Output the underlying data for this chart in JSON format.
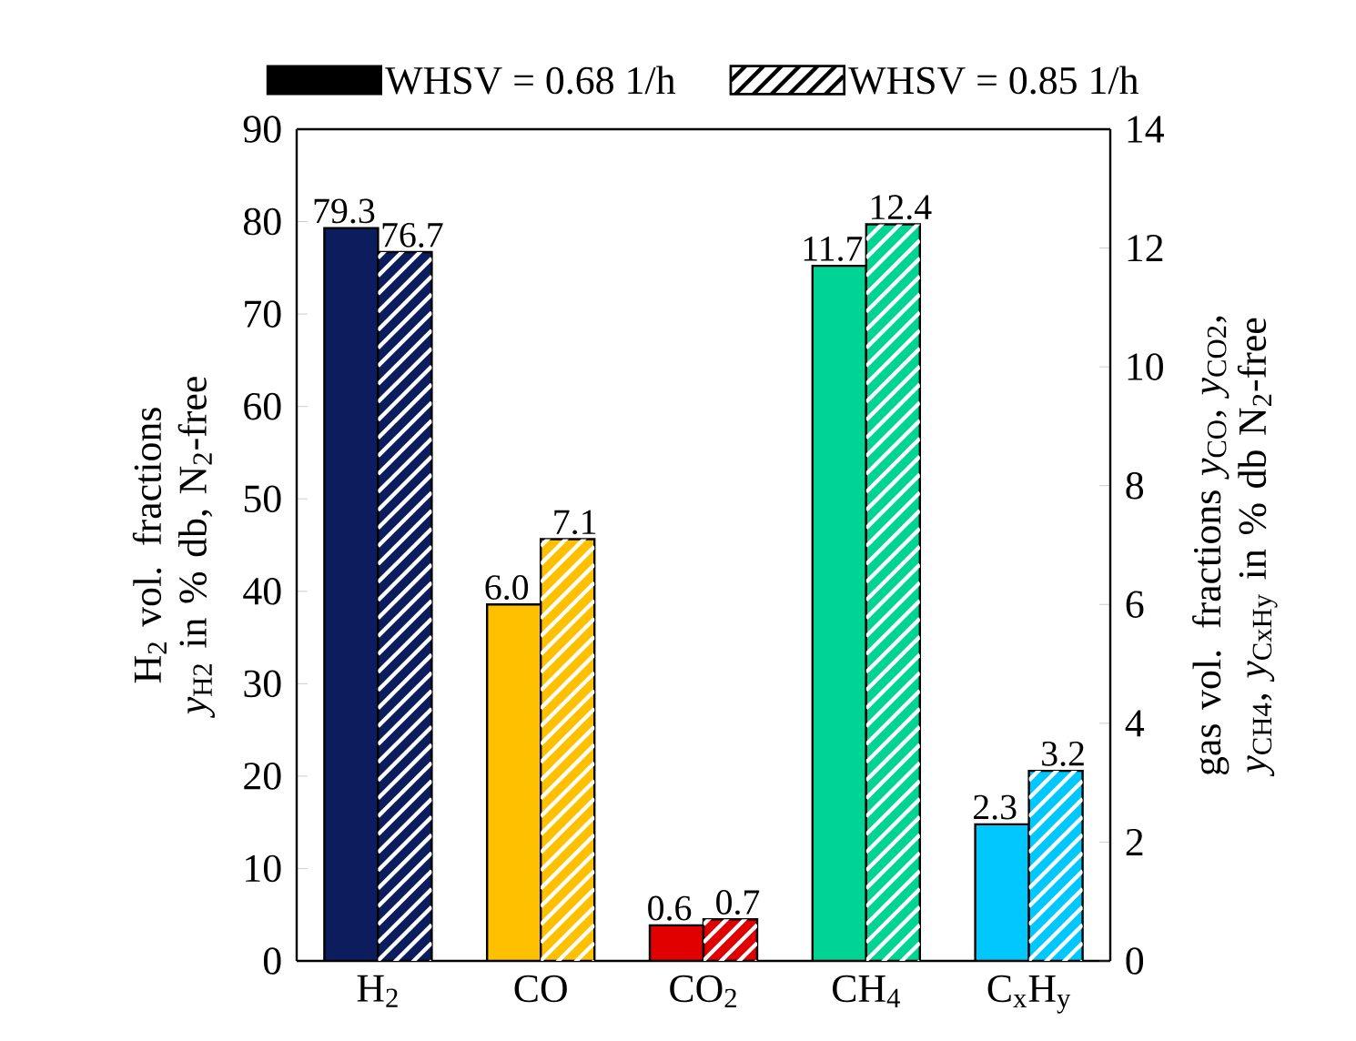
{
  "chart_data": {
    "type": "bar",
    "categories": [
      "H$_{2}$",
      "CO",
      "CO$_{2}$",
      "CH$_{4}$",
      "C$_{x}$H$_{y}$"
    ],
    "ylabel": "H$_{2}$ vol. fractions *y*$_{H2}$ in % db, N$_{2}$-free",
    "y2label": "gas vol. fractions *y*$_{CO}$, *y*$_{CO2}$, *y*$_{CH4}$, *y*$_{CxHy}$ in % db N$_{2}$-free",
    "ylim": [
      0,
      90
    ],
    "yticks": [
      0,
      10,
      20,
      30,
      40,
      50,
      60,
      70,
      80,
      90
    ],
    "y2lim": [
      0,
      14
    ],
    "y2ticks": [
      0,
      2,
      4,
      6,
      8,
      10,
      12,
      14
    ],
    "legend": "top",
    "grid": false,
    "series": [
      {
        "name": "WHSV = 0.68 1/h",
        "color": "#000000",
        "axis": "y",
        "colors": [
          "#0b1d5c",
          null,
          null,
          null,
          null
        ],
        "values": [
          79.3,
          null,
          null,
          null,
          null
        ],
        "value_labels": [
          "79.3",
          null,
          null,
          null,
          null
        ]
      },
      {
        "name": "WHSV = 0.85 1/h",
        "color": "#000000",
        "axis": "y",
        "colors": [
          "#0b1d5c",
          null,
          null,
          null,
          null
        ],
        "values": [
          76.7,
          null,
          null,
          null,
          null
        ],
        "value_labels": [
          "76.7",
          null,
          null,
          null,
          null
        ]
      },
      {
        "axis": "y2",
        "colors": [
          null,
          "#ffc000",
          "#e00000",
          "#00d494",
          "#00c8ff"
        ],
        "values": [
          null,
          6.0,
          0.6,
          11.7,
          2.3
        ],
        "value_labels": [
          null,
          "6.0",
          "0.6",
          "11.7",
          "2.3"
        ]
      },
      {
        "axis": "y2",
        "colors": [
          null,
          "#ffc000",
          "#e00000",
          "#00d494",
          "#00c8ff"
        ],
        "values": [
          null,
          7.1,
          0.7,
          12.4,
          3.2
        ],
        "value_labels": [
          null,
          "7.1",
          "0.7",
          "12.4",
          "3.2"
        ]
      }
    ]
  }
}
